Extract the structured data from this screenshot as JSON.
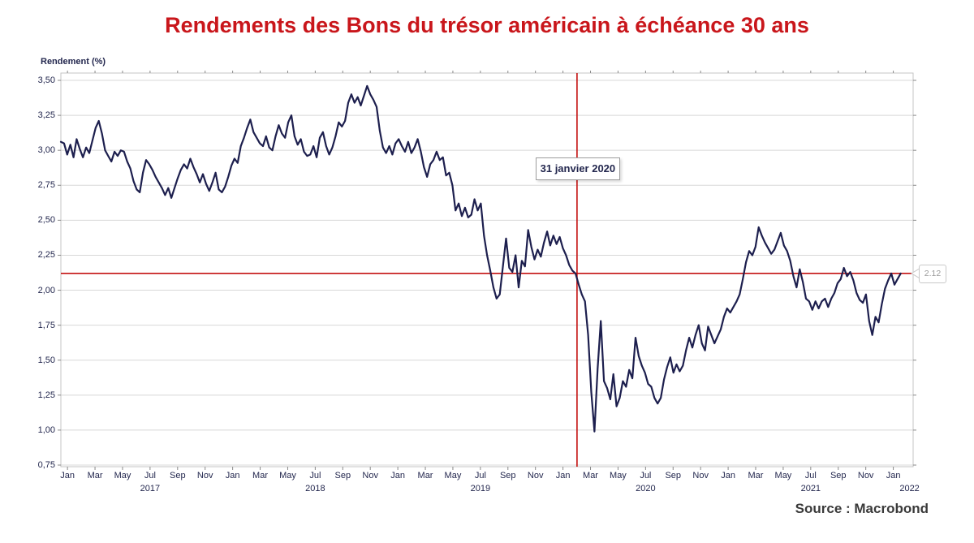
{
  "chart_data": {
    "type": "line",
    "title": "Rendements des Bons du trésor américain à échéance 30 ans",
    "ylabel": "Rendement (%)",
    "source": "Source : Macrobond",
    "ylim": [
      0.75,
      3.5
    ],
    "xlim_years": [
      2016.96,
      2022.12
    ],
    "grid": "horizontal",
    "legend": "none",
    "y_tick_labels": [
      "3,50",
      "3,25",
      "3,00",
      "2,75",
      "2,50",
      "2,25",
      "2,00",
      "1,75",
      "1,50",
      "1,25",
      "1,00",
      "0,75"
    ],
    "y_tick_values": [
      3.5,
      3.25,
      3.0,
      2.75,
      2.5,
      2.25,
      2.0,
      1.75,
      1.5,
      1.25,
      1.0,
      0.75
    ],
    "x_tick_month_labels": [
      "Jan",
      "Mar",
      "May",
      "Jul",
      "Sep",
      "Nov"
    ],
    "x_year_labels": [
      "2017",
      "2018",
      "2019",
      "2020",
      "2021"
    ],
    "final_month_label": "Jan",
    "final_year_label": "2022",
    "annotation": {
      "label": "31 janvier 2020",
      "x": 2020.085
    },
    "crosshair": {
      "value": 2.12,
      "label": "2.12"
    },
    "colors": {
      "title": "#c9161b",
      "line": "#1d1f4e",
      "crosshair": "#c41110",
      "axis_text": "#23274e",
      "grid": "#d8d8d8",
      "border": "#c4c4c4",
      "tick": "#8a8a8a",
      "source_text": "#3a3a3a"
    },
    "series": [
      {
        "x_start": 2016.96,
        "x_end": 2022.045,
        "values": [
          3.06,
          3.05,
          2.97,
          3.04,
          2.95,
          3.08,
          3.01,
          2.95,
          3.02,
          2.98,
          3.07,
          3.16,
          3.21,
          3.12,
          3.0,
          2.96,
          2.92,
          2.99,
          2.96,
          3.0,
          2.99,
          2.92,
          2.87,
          2.78,
          2.72,
          2.7,
          2.84,
          2.93,
          2.9,
          2.86,
          2.81,
          2.77,
          2.73,
          2.68,
          2.73,
          2.66,
          2.73,
          2.8,
          2.86,
          2.9,
          2.87,
          2.94,
          2.88,
          2.83,
          2.77,
          2.83,
          2.76,
          2.71,
          2.77,
          2.84,
          2.72,
          2.7,
          2.74,
          2.81,
          2.89,
          2.94,
          2.91,
          3.03,
          3.09,
          3.16,
          3.22,
          3.13,
          3.09,
          3.05,
          3.03,
          3.1,
          3.02,
          3.0,
          3.1,
          3.18,
          3.12,
          3.09,
          3.2,
          3.25,
          3.1,
          3.04,
          3.08,
          2.99,
          2.96,
          2.97,
          3.03,
          2.95,
          3.09,
          3.13,
          3.03,
          2.97,
          3.02,
          3.1,
          3.2,
          3.17,
          3.21,
          3.34,
          3.4,
          3.34,
          3.38,
          3.32,
          3.39,
          3.46,
          3.4,
          3.36,
          3.31,
          3.14,
          3.02,
          2.98,
          3.03,
          2.97,
          3.05,
          3.08,
          3.03,
          2.99,
          3.06,
          2.98,
          3.02,
          3.08,
          2.99,
          2.88,
          2.81,
          2.9,
          2.93,
          2.99,
          2.93,
          2.95,
          2.82,
          2.84,
          2.75,
          2.57,
          2.62,
          2.53,
          2.59,
          2.52,
          2.54,
          2.65,
          2.57,
          2.62,
          2.39,
          2.25,
          2.14,
          2.02,
          1.94,
          1.97,
          2.17,
          2.37,
          2.16,
          2.13,
          2.25,
          2.02,
          2.21,
          2.17,
          2.43,
          2.31,
          2.22,
          2.29,
          2.24,
          2.34,
          2.42,
          2.32,
          2.39,
          2.33,
          2.38,
          2.3,
          2.25,
          2.18,
          2.14,
          2.12,
          2.04,
          1.97,
          1.92,
          1.68,
          1.27,
          0.99,
          1.44,
          1.78,
          1.35,
          1.3,
          1.22,
          1.4,
          1.17,
          1.23,
          1.35,
          1.31,
          1.43,
          1.37,
          1.66,
          1.53,
          1.46,
          1.41,
          1.33,
          1.31,
          1.23,
          1.19,
          1.23,
          1.36,
          1.45,
          1.52,
          1.41,
          1.47,
          1.42,
          1.46,
          1.57,
          1.66,
          1.59,
          1.68,
          1.75,
          1.62,
          1.57,
          1.74,
          1.68,
          1.62,
          1.67,
          1.72,
          1.81,
          1.87,
          1.84,
          1.88,
          1.92,
          1.97,
          2.08,
          2.2,
          2.28,
          2.25,
          2.31,
          2.45,
          2.39,
          2.34,
          2.3,
          2.26,
          2.29,
          2.35,
          2.41,
          2.32,
          2.28,
          2.21,
          2.1,
          2.02,
          2.15,
          2.06,
          1.94,
          1.92,
          1.86,
          1.92,
          1.87,
          1.92,
          1.94,
          1.88,
          1.94,
          1.98,
          2.05,
          2.08,
          2.16,
          2.1,
          2.13,
          2.07,
          1.98,
          1.93,
          1.91,
          1.97,
          1.78,
          1.68,
          1.81,
          1.77,
          1.9,
          2.01,
          2.07,
          2.12,
          2.04,
          2.08,
          2.12
        ]
      }
    ]
  }
}
